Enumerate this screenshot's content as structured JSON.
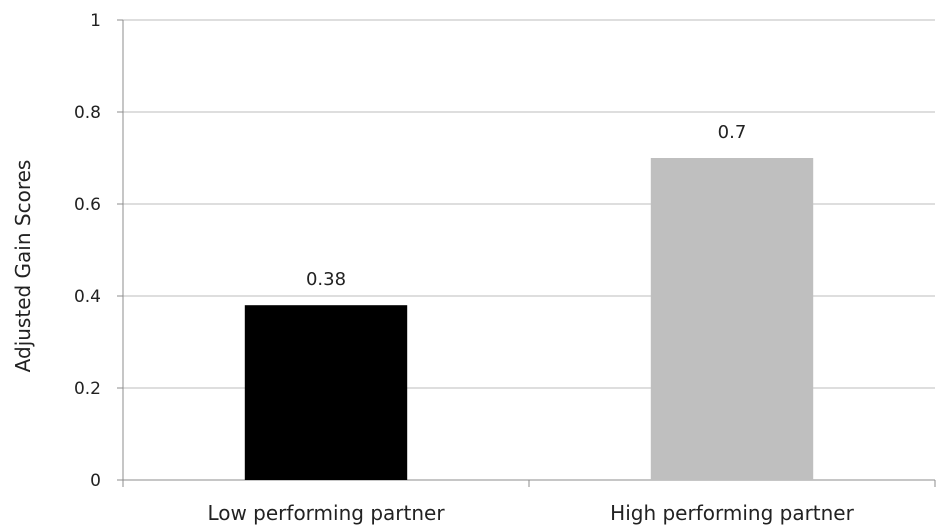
{
  "chart_data": {
    "type": "bar",
    "title": "",
    "xlabel": "",
    "ylabel": "Adjusted Gain Scores",
    "ylim": [
      0,
      1
    ],
    "yticks": [
      0,
      0.2,
      0.4,
      0.6,
      0.8,
      1
    ],
    "ytick_labels": [
      "0",
      "0.2",
      "0.4",
      "0.6",
      "0.8",
      "1"
    ],
    "grid": true,
    "categories": [
      "Low performing partner",
      "High performing partner"
    ],
    "values": [
      0.38,
      0.7
    ],
    "value_labels": [
      "0.38",
      "0.7"
    ],
    "colors": [
      "#000000",
      "#bfbfbf"
    ]
  }
}
